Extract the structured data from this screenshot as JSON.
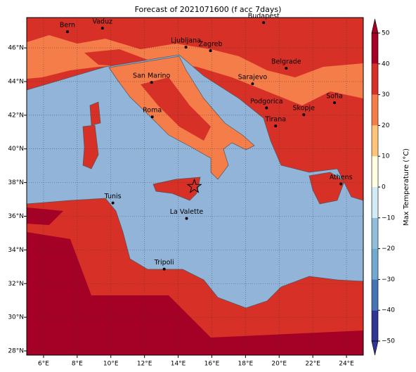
{
  "title": "Forecast of 2021071600 (f acc 7days)",
  "map": {
    "xlim": [
      5,
      25
    ],
    "ylim": [
      27.75,
      47.8
    ],
    "grid": true,
    "xticks": [
      {
        "value": 6,
        "label": "6°E"
      },
      {
        "value": 8,
        "label": "8°E"
      },
      {
        "value": 10,
        "label": "10°E"
      },
      {
        "value": 12,
        "label": "12°E"
      },
      {
        "value": 14,
        "label": "14°E"
      },
      {
        "value": 16,
        "label": "16°E"
      },
      {
        "value": 18,
        "label": "18°E"
      },
      {
        "value": 20,
        "label": "20°E"
      },
      {
        "value": 22,
        "label": "22°E"
      },
      {
        "value": 24,
        "label": "24°E"
      }
    ],
    "yticks": [
      {
        "value": 28,
        "label": "28°N"
      },
      {
        "value": 30,
        "label": "30°N"
      },
      {
        "value": 32,
        "label": "32°N"
      },
      {
        "value": 34,
        "label": "34°N"
      },
      {
        "value": 36,
        "label": "36°N"
      },
      {
        "value": 38,
        "label": "38°N"
      },
      {
        "value": 40,
        "label": "40°N"
      },
      {
        "value": 42,
        "label": "42°N"
      },
      {
        "value": 44,
        "label": "44°N"
      },
      {
        "value": 46,
        "label": "46°N"
      }
    ],
    "cities": [
      {
        "name": "Bern",
        "lon": 7.42,
        "lat": 46.96
      },
      {
        "name": "Vaduz",
        "lon": 9.5,
        "lat": 47.17
      },
      {
        "name": "Budapest",
        "lon": 19.08,
        "lat": 47.5
      },
      {
        "name": "Ljubljana",
        "lon": 14.46,
        "lat": 46.04
      },
      {
        "name": "Zagreb",
        "lon": 15.92,
        "lat": 45.83
      },
      {
        "name": "San Marino",
        "lon": 12.42,
        "lat": 43.95
      },
      {
        "name": "Belgrade",
        "lon": 20.42,
        "lat": 44.79
      },
      {
        "name": "Sarajevo",
        "lon": 18.42,
        "lat": 43.87
      },
      {
        "name": "Sofia",
        "lon": 23.29,
        "lat": 42.74
      },
      {
        "name": "Podgorica",
        "lon": 19.25,
        "lat": 42.44
      },
      {
        "name": "Skopje",
        "lon": 21.46,
        "lat": 42.03
      },
      {
        "name": "Roma",
        "lon": 12.46,
        "lat": 41.9
      },
      {
        "name": "Tirana",
        "lon": 19.79,
        "lat": 41.36
      },
      {
        "name": "Athens",
        "lon": 23.67,
        "lat": 37.92
      },
      {
        "name": "Tunis",
        "lon": 10.12,
        "lat": 36.79
      },
      {
        "name": "La Valette",
        "lon": 14.5,
        "lat": 35.87
      },
      {
        "name": "Tripoli",
        "lon": 13.17,
        "lat": 32.86
      }
    ],
    "marker": {
      "lon": 14.96,
      "lat": 37.76
    }
  },
  "colorbar": {
    "label": "Max Temperature (°C)",
    "ticks": [
      {
        "value": -50,
        "label": "−50"
      },
      {
        "value": -40,
        "label": "−40"
      },
      {
        "value": -30,
        "label": "−30"
      },
      {
        "value": -20,
        "label": "−20"
      },
      {
        "value": -10,
        "label": "−10"
      },
      0,
      10,
      20,
      30,
      40,
      50
    ],
    "colors": [
      "#313695",
      "#4575b4",
      "#74a9cf",
      "#91bfdb",
      "#d1ecf4",
      "#fffee0",
      "#fdc47a",
      "#f47d4a",
      "#d73027",
      "#a50026"
    ]
  }
}
